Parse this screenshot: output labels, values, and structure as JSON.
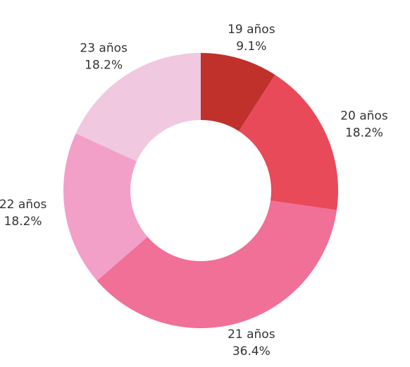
{
  "chart_data": {
    "type": "donut",
    "categories": [
      "19 años",
      "20 años",
      "21 años",
      "22 años",
      "23 años"
    ],
    "values": [
      9.1,
      18.2,
      36.4,
      18.2,
      18.2
    ],
    "value_labels": [
      "9.1%",
      "18.2%",
      "36.4%",
      "18.2%",
      "18.2%"
    ],
    "colors": [
      "#c0312b",
      "#e84a5a",
      "#f07098",
      "#f2a0c8",
      "#f0c8e0"
    ]
  }
}
